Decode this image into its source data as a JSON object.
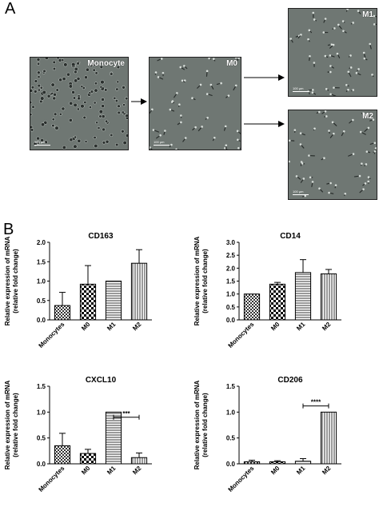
{
  "panelA": {
    "letter": "A",
    "images": [
      {
        "id": "monocyte",
        "label": "Monocyte",
        "scalebar": "100 µm"
      },
      {
        "id": "m0",
        "label": "M0",
        "scalebar": "100 µm"
      },
      {
        "id": "m1",
        "label": "M1",
        "scalebar": "100 µm"
      },
      {
        "id": "m2",
        "label": "M2",
        "scalebar": "100 µm"
      }
    ]
  },
  "panelB": {
    "letter": "B"
  },
  "colors": {
    "bar_fill": "#ffffff",
    "bar_stroke": "#000000",
    "micro_bg": "#6f7773"
  },
  "chart_data": [
    {
      "type": "bar",
      "title": "CD163",
      "ylabel": "Relative expression of mRNA\n(relative fold change)",
      "categories": [
        "Monocytes",
        "M0",
        "M1",
        "M2"
      ],
      "values": [
        0.37,
        0.92,
        1.0,
        1.46
      ],
      "errors": [
        0.34,
        0.48,
        0.0,
        0.35
      ],
      "patterns": [
        "checker",
        "checker-bold",
        "horizontal",
        "vertical"
      ],
      "ylim": [
        0,
        2.0
      ],
      "yticks": [
        "0.0",
        "0.5",
        "1.0",
        "1.5",
        "2.0"
      ],
      "significance": null
    },
    {
      "type": "bar",
      "title": "CD14",
      "ylabel": "Relative expression of mRNA\n(relative fold change)",
      "categories": [
        "Monocytes",
        "M0",
        "M1",
        "M2"
      ],
      "values": [
        1.0,
        1.38,
        1.83,
        1.78
      ],
      "errors": [
        0.0,
        0.07,
        0.5,
        0.17
      ],
      "patterns": [
        "checker",
        "checker-bold",
        "horizontal",
        "vertical"
      ],
      "ylim": [
        0,
        3.0
      ],
      "yticks": [
        "0.0",
        "0.5",
        "1.0",
        "1.5",
        "2.0",
        "2.5",
        "3.0"
      ],
      "significance": null
    },
    {
      "type": "bar",
      "title": "CXCL10",
      "ylabel": "Relative expression of mRNA\n(relative fold change)",
      "categories": [
        "Monocytes",
        "M0",
        "M1",
        "M2"
      ],
      "values": [
        0.35,
        0.2,
        1.0,
        0.12
      ],
      "errors": [
        0.24,
        0.08,
        0.0,
        0.09
      ],
      "patterns": [
        "checker",
        "checker-bold",
        "horizontal",
        "vertical"
      ],
      "ylim": [
        0,
        1.5
      ],
      "yticks": [
        "0.0",
        "0.5",
        "1.0",
        "1.5"
      ],
      "significance": {
        "from": "M1",
        "to": "M2",
        "label": "***",
        "y": 0.9
      }
    },
    {
      "type": "bar",
      "title": "CD206",
      "ylabel": "Relative expression of mRNA\n(relative fold change)",
      "categories": [
        "Monocytes",
        "M0",
        "M1",
        "M2"
      ],
      "values": [
        0.04,
        0.04,
        0.05,
        1.0
      ],
      "errors": [
        0.03,
        0.02,
        0.05,
        0.0
      ],
      "patterns": [
        "checker",
        "checker-bold",
        "horizontal",
        "vertical"
      ],
      "ylim": [
        0,
        1.5
      ],
      "yticks": [
        "0.0",
        "0.5",
        "1.0",
        "1.5"
      ],
      "significance": {
        "from": "M1",
        "to": "M2",
        "label": "****",
        "y": 1.12
      }
    }
  ]
}
